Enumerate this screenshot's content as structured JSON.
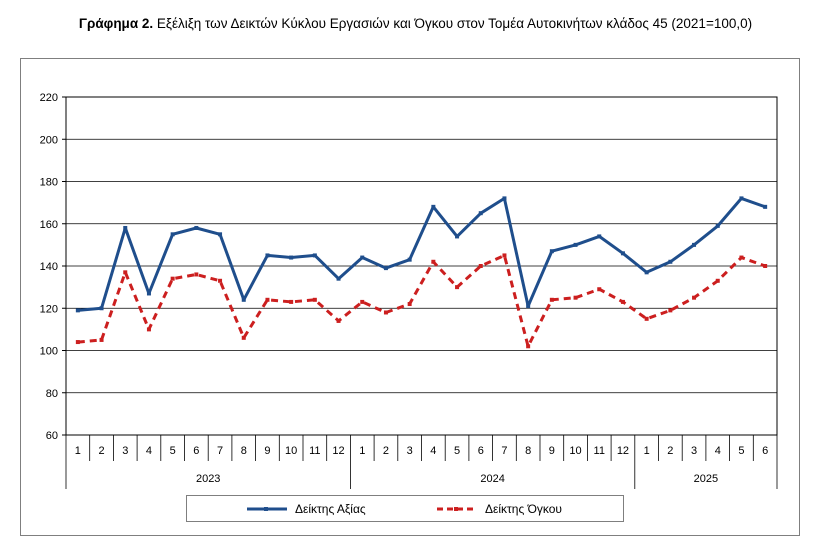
{
  "title": {
    "prefix": "Γράφημα 2.",
    "text": " Εξέλιξη των Δεικτών Κύκλου Εργασιών και Όγκου στον Τομέα Αυτοκινήτων κλάδος 45 (2021=100,0)"
  },
  "chart_data": {
    "type": "line",
    "categories": [
      "1",
      "2",
      "3",
      "4",
      "5",
      "6",
      "7",
      "8",
      "9",
      "10",
      "11",
      "12",
      "1",
      "2",
      "3",
      "4",
      "5",
      "6",
      "7",
      "8",
      "9",
      "10",
      "11",
      "12",
      "1",
      "2",
      "3",
      "4",
      "5",
      "6"
    ],
    "year_groups": [
      {
        "label": "2023",
        "count": 12
      },
      {
        "label": "2024",
        "count": 12
      },
      {
        "label": "2025",
        "count": 6
      }
    ],
    "y_ticks": [
      60,
      80,
      100,
      120,
      140,
      160,
      180,
      200,
      220
    ],
    "ylim": [
      60,
      220
    ],
    "grid": true,
    "legend_position": "bottom",
    "series": [
      {
        "name": "Δείκτης Αξίας",
        "color": "#1f4e8c",
        "style": "solid",
        "values": [
          119,
          120,
          158,
          127,
          155,
          158,
          155,
          124,
          145,
          144,
          145,
          134,
          144,
          139,
          143,
          168,
          154,
          165,
          172,
          121,
          147,
          150,
          154,
          146,
          137,
          142,
          150,
          159,
          172,
          168
        ]
      },
      {
        "name": "Δείκτης Όγκου",
        "color": "#cc1f1f",
        "style": "dashed",
        "values": [
          104,
          105,
          137,
          110,
          134,
          136,
          133,
          106,
          124,
          123,
          124,
          114,
          123,
          118,
          122,
          142,
          130,
          140,
          145,
          102,
          124,
          125,
          129,
          123,
          115,
          119,
          125,
          133,
          144,
          140
        ]
      }
    ]
  }
}
